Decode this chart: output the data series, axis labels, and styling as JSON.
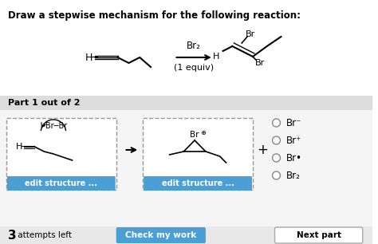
{
  "title": "Draw a stepwise mechanism for the following reaction:",
  "bg_color": "#ffffff",
  "section_bg": "#e8e8e8",
  "part_label": "Part 1 out of 2",
  "arrow_label_top": "Br₂",
  "arrow_label_bottom": "(1 equiv)",
  "radio_options": [
    "Br⁻",
    "Br⁺",
    "Br•",
    "Br₂"
  ],
  "button1_text": "edit structure ...",
  "button2_text": "edit structure ...",
  "button3_text": "Check my work",
  "button4_text": "Next part",
  "attempts_bold": "3",
  "attempts_rest": " attempts left",
  "footer_bg": "#f0f0f0",
  "blue_btn_color": "#4a9fd4",
  "gray_btn_color": "#d0d0d0",
  "box_border_color": "#aaaaaa",
  "dash_border_color": "#999999"
}
